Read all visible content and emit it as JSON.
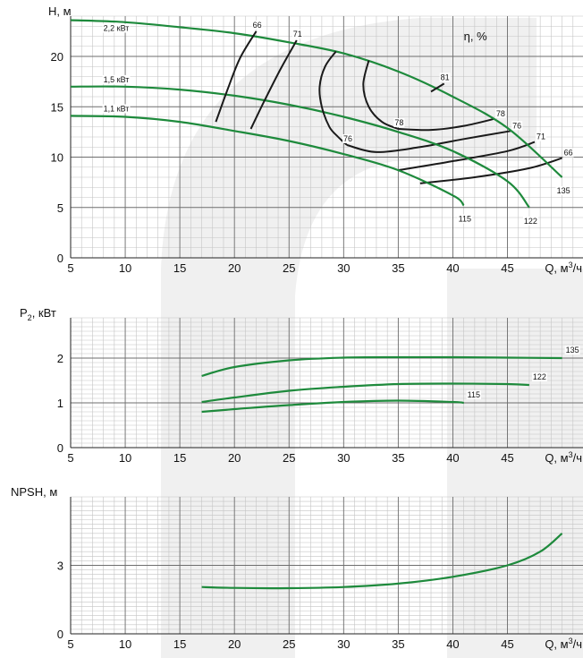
{
  "colors": {
    "pump_curve": "#1e8a3c",
    "efficiency_curve": "#1a1a1a",
    "major_grid": "#6e6e6e",
    "minor_grid": "#c4c4c4",
    "background_mark": "#f0f0f0"
  },
  "chart_data": [
    {
      "type": "line",
      "title": "",
      "ylabel": "H, м",
      "xlabel": "Q, м³/ч",
      "xlabel_base": "Q, м",
      "xlabel_sup": "3",
      "xlabel_tail": "/ч",
      "xlim": [
        5,
        52
      ],
      "ylim": [
        0,
        24
      ],
      "x_ticks": [
        5,
        10,
        15,
        20,
        25,
        30,
        35,
        40,
        45
      ],
      "y_ticks": [
        0,
        5,
        10,
        15,
        20
      ],
      "grid": true,
      "efficiency_label": "η, %",
      "series": [
        {
          "name": "135",
          "kind": "pump",
          "label_at": "end",
          "x": [
            5,
            10,
            15,
            20,
            25,
            30,
            35,
            40,
            45,
            50
          ],
          "y": [
            23.6,
            23.4,
            22.9,
            22.3,
            21.4,
            20.3,
            18.5,
            16.0,
            12.9,
            8.0
          ]
        },
        {
          "name": "122",
          "kind": "pump",
          "label_at": "end",
          "x": [
            5,
            10,
            15,
            20,
            25,
            30,
            35,
            40,
            45,
            47
          ],
          "y": [
            17.0,
            17.0,
            16.7,
            16.1,
            15.2,
            14.0,
            12.5,
            10.6,
            7.6,
            5.0
          ]
        },
        {
          "name": "115",
          "kind": "pump",
          "label_at": "end",
          "x": [
            5,
            10,
            15,
            20,
            25,
            30,
            35,
            40,
            41
          ],
          "y": [
            14.1,
            14.0,
            13.5,
            12.6,
            11.6,
            10.3,
            8.7,
            6.2,
            5.2
          ]
        },
        {
          "name": "66",
          "kind": "efficiency",
          "label_at": "both",
          "x": [
            18.3,
            19.3,
            20.5,
            22.0
          ],
          "y": [
            13.5,
            16.5,
            19.8,
            22.5
          ]
        },
        {
          "name": "71",
          "kind": "efficiency",
          "label_at": "both",
          "x": [
            21.5,
            22.7,
            24.2,
            25.7
          ],
          "y": [
            12.8,
            15.5,
            18.7,
            21.6
          ]
        },
        {
          "name": "76",
          "kind": "efficiency",
          "label_at": "both",
          "x": [
            29.3,
            28.3,
            27.8,
            28.0,
            28.7,
            29.5,
            30.3
          ],
          "y": [
            20.5,
            19.0,
            17.0,
            15.0,
            13.0,
            12.0,
            11.2
          ]
        },
        {
          "name": "78",
          "kind": "efficiency",
          "label_at": "both",
          "x": [
            32.3,
            31.8,
            32.3,
            33.5,
            35.0
          ],
          "y": [
            19.6,
            17.2,
            15.0,
            13.5,
            12.8
          ]
        },
        {
          "name": "81",
          "kind": "efficiency",
          "label_at": "start",
          "x": [
            38.0,
            39.2
          ],
          "y": [
            16.5,
            17.3
          ]
        }
      ],
      "efficiency_lower": [
        {
          "name": "78",
          "x": [
            35.0,
            38.0,
            41.0,
            43.8
          ],
          "y": [
            12.8,
            12.7,
            13.1,
            13.8
          ]
        },
        {
          "name": "76",
          "x": [
            30.3,
            33.0,
            37.0,
            41.0,
            45.3
          ],
          "y": [
            11.2,
            10.5,
            11.0,
            11.8,
            12.6
          ]
        },
        {
          "name": "71",
          "x": [
            35.0,
            40.0,
            45.0,
            47.5
          ],
          "y": [
            8.7,
            9.6,
            10.6,
            11.5
          ]
        },
        {
          "name": "66",
          "x": [
            37.0,
            42.0,
            47.0,
            50.0
          ],
          "y": [
            7.4,
            8.0,
            8.9,
            9.9
          ]
        }
      ],
      "power_labels": [
        {
          "text": "2,2 кВт",
          "x": 8.0,
          "y": 22.8
        },
        {
          "text": "1,5 кВт",
          "x": 8.0,
          "y": 17.7
        },
        {
          "text": "1,1 кВт",
          "x": 8.0,
          "y": 14.8
        }
      ]
    },
    {
      "type": "line",
      "title": "",
      "ylabel": "P₂, кВт",
      "ylabel_base": "P",
      "ylabel_sub": "2",
      "ylabel_tail": ", кВт",
      "xlabel": "Q, м³/ч",
      "xlabel_base": "Q, м",
      "xlabel_sup": "3",
      "xlabel_tail": "/ч",
      "xlim": [
        5,
        52
      ],
      "ylim": [
        0,
        2.9
      ],
      "x_ticks": [
        5,
        10,
        15,
        20,
        25,
        30,
        35,
        40,
        45
      ],
      "y_ticks": [
        0,
        1,
        2
      ],
      "grid": true,
      "series": [
        {
          "name": "135",
          "x": [
            17.0,
            20.0,
            25.0,
            30.0,
            35.0,
            40.0,
            45.0,
            50.0
          ],
          "y": [
            1.6,
            1.8,
            1.95,
            2.01,
            2.02,
            2.02,
            2.01,
            2.0
          ]
        },
        {
          "name": "122",
          "x": [
            17.0,
            20.0,
            25.0,
            30.0,
            35.0,
            40.0,
            45.0,
            47.0
          ],
          "y": [
            1.02,
            1.12,
            1.27,
            1.36,
            1.42,
            1.43,
            1.42,
            1.4
          ]
        },
        {
          "name": "115",
          "x": [
            17.0,
            20.0,
            25.0,
            30.0,
            35.0,
            40.0,
            41.0
          ],
          "y": [
            0.8,
            0.86,
            0.95,
            1.02,
            1.05,
            1.02,
            1.0
          ]
        }
      ]
    },
    {
      "type": "line",
      "title": "",
      "ylabel": "NPSH, м",
      "xlabel": "Q, м³/ч",
      "xlabel_base": "Q, м",
      "xlabel_sup": "3",
      "xlabel_tail": "/ч",
      "xlim": [
        5,
        52
      ],
      "ylim": [
        0,
        6
      ],
      "x_ticks": [
        5,
        10,
        15,
        20,
        25,
        30,
        35,
        40,
        45
      ],
      "y_ticks": [
        0,
        3
      ],
      "grid": true,
      "series": [
        {
          "name": "",
          "x": [
            17.0,
            20.0,
            25.0,
            30.0,
            35.0,
            40.0,
            45.0,
            48.0,
            50.0
          ],
          "y": [
            2.05,
            2.01,
            2.0,
            2.05,
            2.2,
            2.5,
            3.0,
            3.6,
            4.4
          ]
        }
      ]
    }
  ]
}
